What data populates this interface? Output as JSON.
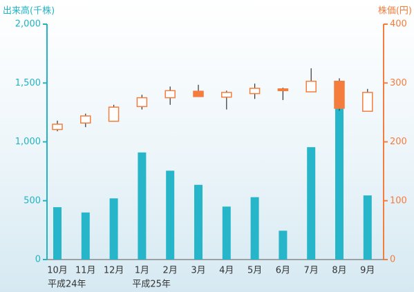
{
  "chart_data": {
    "type": "bar-candlestick",
    "y_label": "出来高(千株)",
    "y2_label": "株価(円)",
    "categories": [
      "10月",
      "11月",
      "12月",
      "1月",
      "2月",
      "3月",
      "4月",
      "5月",
      "6月",
      "7月",
      "8月",
      "9月"
    ],
    "annotations": [
      {
        "category": 0,
        "text": "平成24年"
      },
      {
        "category": 3,
        "text": "平成25年"
      }
    ],
    "ylim": [
      0,
      2000
    ],
    "yticks": [
      0,
      500,
      {
        "value": 1000,
        "label": "1,000"
      },
      {
        "value": 1500,
        "label": "1,500"
      },
      {
        "value": 2000,
        "label": "2,000"
      }
    ],
    "y2lim": [
      0,
      400
    ],
    "y2ticks": [
      0,
      100,
      200,
      300,
      400
    ],
    "y_color": "#1fb3c4",
    "y2_color": "#f47c3c",
    "volume": {
      "color": "#27b6c9",
      "values": [
        445,
        400,
        520,
        910,
        755,
        635,
        450,
        530,
        245,
        955,
        1295,
        545
      ]
    },
    "price": {
      "color": "#f47c3c",
      "axis": "y2",
      "open": [
        221,
        232,
        235,
        260,
        275,
        286,
        276,
        282,
        290,
        285,
        303,
        252
      ],
      "high": [
        236,
        248,
        263,
        280,
        294,
        297,
        287,
        299,
        292,
        325,
        308,
        290
      ],
      "low": [
        218,
        225,
        235,
        255,
        263,
        277,
        255,
        273,
        271,
        285,
        253,
        252
      ],
      "close": [
        230,
        244,
        259,
        275,
        287,
        277,
        284,
        291,
        287,
        303,
        257,
        284
      ]
    }
  }
}
